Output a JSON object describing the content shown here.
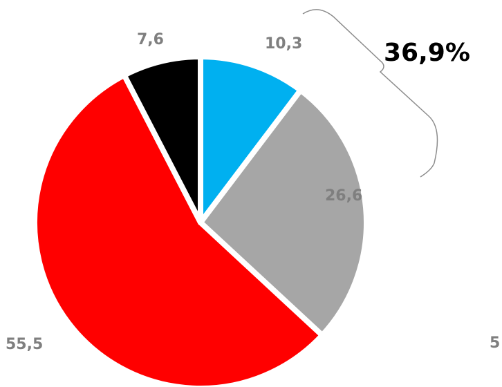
{
  "chart_data": {
    "type": "pie",
    "values": [
      10.3,
      26.6,
      55.5,
      7.6
    ],
    "labels": [
      "10,3",
      "26,6",
      "55,5",
      "7,6"
    ],
    "colors": [
      "#00b0f0",
      "#a6a6a6",
      "#ff0000",
      "#000000"
    ],
    "start": "12 o'clock",
    "direction": "clockwise",
    "annotation": {
      "text": "36,9%",
      "spans": [
        "10,3",
        "26,6"
      ]
    },
    "cut_off_label": "5"
  }
}
